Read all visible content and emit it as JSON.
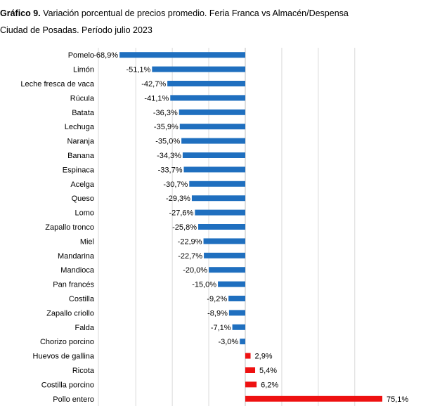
{
  "title": {
    "prefix": "Gráfico 9.",
    "text": "Variación porcentual de precios promedio. Feria Franca vs Almacén/Despensa",
    "line2": "Ciudad de Posadas. Período julio 2023"
  },
  "colors": {
    "negative": "#1f6fbf",
    "positive": "#ee1111",
    "grid": "#d9d9d9",
    "axis": "#bfbfbf"
  },
  "chart_data": {
    "type": "bar",
    "orientation": "horizontal",
    "title": "Gráfico 9. Variación porcentual de precios promedio. Feria Franca vs Almacén/Despensa",
    "subtitle": "Ciudad de Posadas. Período julio 2023",
    "xlim": [
      -80,
      80
    ],
    "grid": true,
    "categories": [
      "Pomelo",
      "Limón",
      "Leche fresca de vaca",
      "Rúcula",
      "Batata",
      "Lechuga",
      "Naranja",
      "Banana",
      "Espinaca",
      "Acelga",
      "Queso",
      "Lomo",
      "Zapallo tronco",
      "Miel",
      "Mandarina",
      "Mandioca",
      "Pan francés",
      "Costilla",
      "Zapallo criollo",
      "Falda",
      "Chorizo porcino",
      "Huevos de gallina",
      "Ricota",
      "Costilla porcino",
      "Pollo entero"
    ],
    "values": [
      -68.9,
      -51.1,
      -42.7,
      -41.1,
      -36.3,
      -35.9,
      -35.0,
      -34.3,
      -33.7,
      -30.7,
      -29.3,
      -27.6,
      -25.8,
      -22.9,
      -22.7,
      -20.0,
      -15.0,
      -9.2,
      -8.9,
      -7.1,
      -3.0,
      2.9,
      5.4,
      6.2,
      75.1
    ],
    "labels": [
      "-68,9%",
      "-51,1%",
      "-42,7%",
      "-41,1%",
      "-36,3%",
      "-35,9%",
      "-35,0%",
      "-34,3%",
      "-33,7%",
      "-30,7%",
      "-29,3%",
      "-27,6%",
      "-25,8%",
      "-22,9%",
      "-22,7%",
      "-20,0%",
      "-15,0%",
      "-9,2%",
      "-8,9%",
      "-7,1%",
      "-3,0%",
      "2,9%",
      "5,4%",
      "6,2%",
      "75,1%"
    ]
  }
}
